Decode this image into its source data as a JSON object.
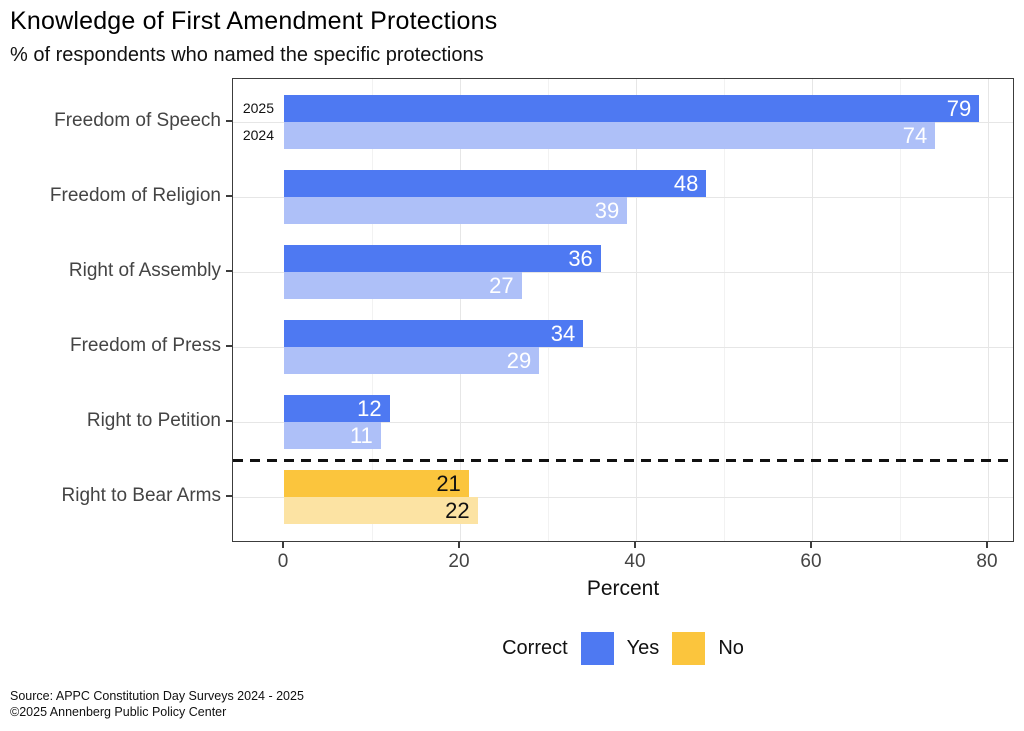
{
  "header": {
    "title": "Knowledge of First Amendment Protections",
    "subtitle": "% of respondents who named the specific protections"
  },
  "chart_data": {
    "type": "bar",
    "orientation": "horizontal",
    "title": "Knowledge of First Amendment Protections",
    "subtitle": "% of respondents who named the specific protections",
    "categories": [
      "Freedom of Speech",
      "Freedom of Religion",
      "Right of Assembly",
      "Freedom of Press",
      "Right to Petition",
      "Right to Bear Arms"
    ],
    "series": [
      {
        "name": "2025",
        "values": [
          79,
          48,
          36,
          34,
          12,
          21
        ]
      },
      {
        "name": "2024",
        "values": [
          74,
          39,
          27,
          29,
          11,
          22
        ]
      }
    ],
    "correct_by_category": [
      "Yes",
      "Yes",
      "Yes",
      "Yes",
      "Yes",
      "No"
    ],
    "year_labels_shown_on_category_index": 0,
    "divider": {
      "style": "dashed",
      "after_category_index": 4
    },
    "xlabel": "Percent",
    "x_ticks": [
      0,
      20,
      40,
      60,
      80
    ],
    "x_minor_ticks": [
      10,
      30,
      50,
      70
    ],
    "xlim": [
      0,
      83
    ],
    "grid": true,
    "legend": {
      "title": "Correct",
      "position": "bottom",
      "entries": [
        {
          "label": "Yes",
          "color": "#4E79F2"
        },
        {
          "label": "No",
          "color": "#FBC53D"
        }
      ]
    },
    "colors": {
      "yes_2025": "#4E79F2",
      "yes_2024": "#AEC0F8",
      "no_2025": "#FBC53D",
      "no_2024": "#FCE3A3",
      "label_on_yes": "#FFFFFF",
      "label_on_no": "#111111",
      "grid_major": "#E6E6E6",
      "grid_minor": "#F2F2F2",
      "panel_border": "#3C3C3C",
      "axis_text": "#444444"
    }
  },
  "footer": {
    "source_line1": "Source: APPC Constitution Day Surveys 2024 - 2025",
    "source_line2": "©2025 Annenberg Public Policy Center"
  }
}
